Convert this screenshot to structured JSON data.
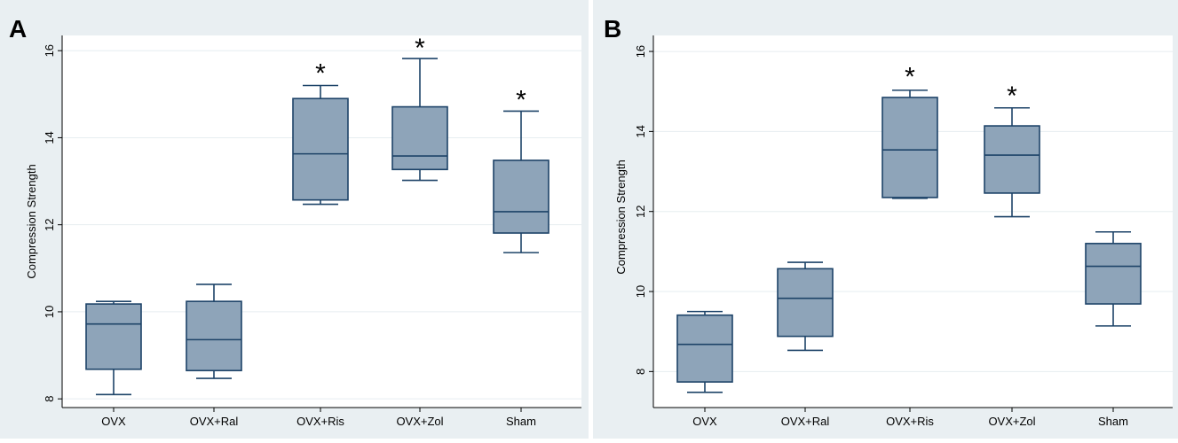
{
  "colors": {
    "outer_bg": "#e9eff2",
    "plot_bg": "#ffffff",
    "grid": "#e6edf0",
    "box_fill": "#8ea4b9",
    "box_stroke": "#1d4368",
    "axis": "#000000",
    "text": "#000000"
  },
  "chart_data": [
    {
      "panel": "A",
      "type": "box",
      "title": "",
      "xlabel": "",
      "ylabel": "Compression Strength",
      "ylim": [
        7.8,
        16.35
      ],
      "yticks": [
        8,
        10,
        12,
        14,
        16
      ],
      "grid": true,
      "categories": [
        "OVX",
        "OVX+Ral",
        "OVX+Ris",
        "OVX+Zol",
        "Sham"
      ],
      "boxes": [
        {
          "category": "OVX",
          "min": 8.1,
          "q1": 8.68,
          "median": 9.72,
          "q3": 10.18,
          "max": 10.24
        },
        {
          "category": "OVX+Ral",
          "min": 8.47,
          "q1": 8.65,
          "median": 9.36,
          "q3": 10.24,
          "max": 10.63
        },
        {
          "category": "OVX+Ris",
          "min": 12.47,
          "q1": 12.57,
          "median": 13.63,
          "q3": 14.9,
          "max": 15.2
        },
        {
          "category": "OVX+Zol",
          "min": 13.02,
          "q1": 13.27,
          "median": 13.58,
          "q3": 14.71,
          "max": 15.82
        },
        {
          "category": "Sham",
          "min": 11.36,
          "q1": 11.81,
          "median": 12.3,
          "q3": 13.48,
          "max": 14.61
        }
      ],
      "annotations": [
        {
          "category": "OVX+Ris",
          "text": "*",
          "y": 15.57
        },
        {
          "category": "OVX+Zol",
          "text": "*",
          "y": 16.15
        },
        {
          "category": "Sham",
          "text": "*",
          "y": 14.96
        }
      ]
    },
    {
      "panel": "B",
      "type": "box",
      "title": "",
      "xlabel": "",
      "ylabel": "Compression Strength",
      "ylim": [
        7.1,
        16.4
      ],
      "yticks": [
        8,
        10,
        12,
        14,
        16
      ],
      "grid": true,
      "categories": [
        "OVX",
        "OVX+Ral",
        "OVX+Ris",
        "OVX+Zol",
        "Sham"
      ],
      "boxes": [
        {
          "category": "OVX",
          "min": 7.48,
          "q1": 7.74,
          "median": 8.68,
          "q3": 9.41,
          "max": 9.5
        },
        {
          "category": "OVX+Ral",
          "min": 8.53,
          "q1": 8.88,
          "median": 9.83,
          "q3": 10.57,
          "max": 10.73
        },
        {
          "category": "OVX+Ris",
          "min": 12.33,
          "q1": 12.35,
          "median": 13.54,
          "q3": 14.85,
          "max": 15.03
        },
        {
          "category": "OVX+Zol",
          "min": 11.87,
          "q1": 12.46,
          "median": 13.41,
          "q3": 14.14,
          "max": 14.59
        },
        {
          "category": "Sham",
          "min": 9.14,
          "q1": 9.69,
          "median": 10.63,
          "q3": 11.2,
          "max": 11.49
        }
      ],
      "annotations": [
        {
          "category": "OVX+Ris",
          "text": "*",
          "y": 15.46
        },
        {
          "category": "OVX+Zol",
          "text": "*",
          "y": 14.98
        }
      ]
    }
  ]
}
